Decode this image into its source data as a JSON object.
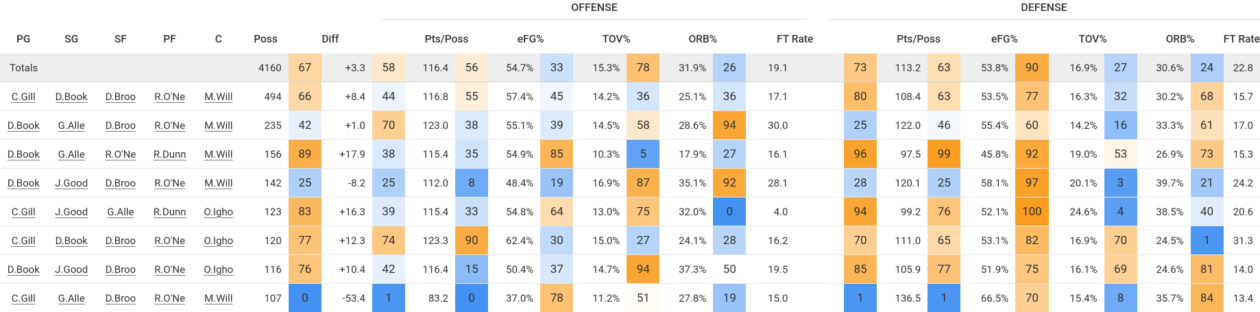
{
  "groups": {
    "offense": "OFFENSE",
    "defense": "DEFENSE"
  },
  "headers": {
    "pg": "PG",
    "sg": "SG",
    "sf": "SF",
    "pf": "PF",
    "c": "C",
    "poss": "Poss",
    "diff": "Diff",
    "off_pts": "Pts/Poss",
    "off_efg": "eFG%",
    "off_tov": "TOV%",
    "off_orb": "ORB%",
    "off_ft": "FT Rate",
    "def_pts": "Pts/Poss",
    "def_efg": "eFG%",
    "def_tov": "TOV%",
    "def_orb": "ORB%",
    "def_ft": "FT Rate"
  },
  "totals": {
    "label": "Totals",
    "poss": "4160",
    "diff_pct": "67",
    "diff": "+3.3",
    "off_pts_pct": "58",
    "off_pts": "116.4",
    "off_efg_pct": "56",
    "off_efg": "54.7%",
    "off_tov_pct": "33",
    "off_tov": "15.3%",
    "off_orb_pct": "78",
    "off_orb": "31.9%",
    "off_ft_pct": "26",
    "off_ft": "19.1",
    "def_pts_pct": "73",
    "def_pts": "113.2",
    "def_efg_pct": "63",
    "def_efg": "53.8%",
    "def_tov_pct": "90",
    "def_tov": "16.9%",
    "def_orb_pct": "27",
    "def_orb": "30.6%",
    "def_ft_pct": "24",
    "def_ft": "22.8"
  },
  "rows": [
    {
      "pg": "C.Gill",
      "sg": "D.Book",
      "sf": "D.Broo",
      "pf": "R.O'Ne",
      "c": "M.Will",
      "poss": "494",
      "diff_pct": "66",
      "diff": "+8.4",
      "off_pts_pct": "44",
      "off_pts": "116.8",
      "off_efg_pct": "55",
      "off_efg": "57.4%",
      "off_tov_pct": "45",
      "off_tov": "14.2%",
      "off_orb_pct": "36",
      "off_orb": "25.1%",
      "off_ft_pct": "36",
      "off_ft": "17.1",
      "def_pts_pct": "80",
      "def_pts": "108.4",
      "def_efg_pct": "63",
      "def_efg": "53.5%",
      "def_tov_pct": "77",
      "def_tov": "16.3%",
      "def_orb_pct": "32",
      "def_orb": "30.2%",
      "def_ft_pct": "68",
      "def_ft": "15.7"
    },
    {
      "pg": "D.Book",
      "sg": "G.Alle",
      "sf": "D.Broo",
      "pf": "R.O'Ne",
      "c": "M.Will",
      "poss": "235",
      "diff_pct": "42",
      "diff": "+1.0",
      "off_pts_pct": "70",
      "off_pts": "123.0",
      "off_efg_pct": "38",
      "off_efg": "55.1%",
      "off_tov_pct": "39",
      "off_tov": "14.5%",
      "off_orb_pct": "58",
      "off_orb": "28.6%",
      "off_ft_pct": "94",
      "off_ft": "30.0",
      "def_pts_pct": "25",
      "def_pts": "122.0",
      "def_efg_pct": "46",
      "def_efg": "55.4%",
      "def_tov_pct": "60",
      "def_tov": "14.2%",
      "def_orb_pct": "16",
      "def_orb": "33.3%",
      "def_ft_pct": "61",
      "def_ft": "17.0"
    },
    {
      "pg": "D.Book",
      "sg": "G.Alle",
      "sf": "R.O'Ne",
      "pf": "R.Dunn",
      "c": "M.Will",
      "poss": "156",
      "diff_pct": "89",
      "diff": "+17.9",
      "off_pts_pct": "38",
      "off_pts": "115.4",
      "off_efg_pct": "35",
      "off_efg": "54.9%",
      "off_tov_pct": "85",
      "off_tov": "10.3%",
      "off_orb_pct": "5",
      "off_orb": "17.9%",
      "off_ft_pct": "27",
      "off_ft": "16.1",
      "def_pts_pct": "96",
      "def_pts": "97.5",
      "def_efg_pct": "99",
      "def_efg": "45.8%",
      "def_tov_pct": "92",
      "def_tov": "19.0%",
      "def_orb_pct": "53",
      "def_orb": "26.9%",
      "def_ft_pct": "73",
      "def_ft": "15.3"
    },
    {
      "pg": "D.Book",
      "sg": "J.Good",
      "sf": "D.Broo",
      "pf": "R.O'Ne",
      "c": "M.Will",
      "poss": "142",
      "diff_pct": "25",
      "diff": "-8.2",
      "off_pts_pct": "25",
      "off_pts": "112.0",
      "off_efg_pct": "8",
      "off_efg": "48.4%",
      "off_tov_pct": "19",
      "off_tov": "16.9%",
      "off_orb_pct": "87",
      "off_orb": "35.1%",
      "off_ft_pct": "92",
      "off_ft": "28.1",
      "def_pts_pct": "28",
      "def_pts": "120.1",
      "def_efg_pct": "25",
      "def_efg": "58.1%",
      "def_tov_pct": "97",
      "def_tov": "20.1%",
      "def_orb_pct": "3",
      "def_orb": "39.7%",
      "def_ft_pct": "21",
      "def_ft": "24.2"
    },
    {
      "pg": "C.Gill",
      "sg": "J.Good",
      "sf": "G.Alle",
      "pf": "R.Dunn",
      "c": "O.Igho",
      "poss": "123",
      "diff_pct": "83",
      "diff": "+16.3",
      "off_pts_pct": "39",
      "off_pts": "115.4",
      "off_efg_pct": "33",
      "off_efg": "54.8%",
      "off_tov_pct": "64",
      "off_tov": "13.0%",
      "off_orb_pct": "75",
      "off_orb": "32.0%",
      "off_ft_pct": "0",
      "off_ft": "4.0",
      "def_pts_pct": "94",
      "def_pts": "99.2",
      "def_efg_pct": "76",
      "def_efg": "52.1%",
      "def_tov_pct": "100",
      "def_tov": "24.6%",
      "def_orb_pct": "4",
      "def_orb": "38.5%",
      "def_ft_pct": "40",
      "def_ft": "20.6"
    },
    {
      "pg": "C.Gill",
      "sg": "D.Book",
      "sf": "D.Broo",
      "pf": "R.O'Ne",
      "c": "O.Igho",
      "poss": "120",
      "diff_pct": "77",
      "diff": "+12.3",
      "off_pts_pct": "74",
      "off_pts": "123.3",
      "off_efg_pct": "90",
      "off_efg": "62.4%",
      "off_tov_pct": "30",
      "off_tov": "15.0%",
      "off_orb_pct": "27",
      "off_orb": "24.1%",
      "off_ft_pct": "28",
      "off_ft": "16.2",
      "def_pts_pct": "70",
      "def_pts": "111.0",
      "def_efg_pct": "65",
      "def_efg": "53.1%",
      "def_tov_pct": "82",
      "def_tov": "16.9%",
      "def_orb_pct": "70",
      "def_orb": "24.5%",
      "def_ft_pct": "1",
      "def_ft": "31.3"
    },
    {
      "pg": "D.Book",
      "sg": "J.Good",
      "sf": "D.Broo",
      "pf": "R.O'Ne",
      "c": "O.Igho",
      "poss": "116",
      "diff_pct": "76",
      "diff": "+10.4",
      "off_pts_pct": "42",
      "off_pts": "116.4",
      "off_efg_pct": "15",
      "off_efg": "50.4%",
      "off_tov_pct": "37",
      "off_tov": "14.7%",
      "off_orb_pct": "94",
      "off_orb": "37.3%",
      "off_ft_pct": "50",
      "off_ft": "19.5",
      "def_pts_pct": "85",
      "def_pts": "105.9",
      "def_efg_pct": "77",
      "def_efg": "51.9%",
      "def_tov_pct": "75",
      "def_tov": "16.1%",
      "def_orb_pct": "69",
      "def_orb": "24.6%",
      "def_ft_pct": "81",
      "def_ft": "14.0"
    },
    {
      "pg": "C.Gill",
      "sg": "G.Alle",
      "sf": "D.Broo",
      "pf": "R.O'Ne",
      "c": "M.Will",
      "poss": "107",
      "diff_pct": "0",
      "diff": "-53.4",
      "off_pts_pct": "1",
      "off_pts": "83.2",
      "off_efg_pct": "0",
      "off_efg": "37.0%",
      "off_tov_pct": "78",
      "off_tov": "11.2%",
      "off_orb_pct": "51",
      "off_orb": "27.8%",
      "off_ft_pct": "19",
      "off_ft": "15.0",
      "def_pts_pct": "1",
      "def_pts": "136.5",
      "def_efg_pct": "1",
      "def_efg": "66.5%",
      "def_tov_pct": "70",
      "def_tov": "15.4%",
      "def_orb_pct": "8",
      "def_orb": "35.7%",
      "def_ft_pct": "84",
      "def_ft": "13.4"
    }
  ]
}
